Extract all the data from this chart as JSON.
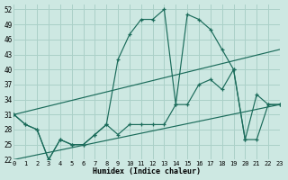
{
  "xlabel": "Humidex (Indice chaleur)",
  "background_color": "#cde8e2",
  "grid_color": "#aad0c8",
  "line_color": "#1a6b5a",
  "xlim": [
    0,
    23
  ],
  "ylim": [
    22,
    53
  ],
  "yticks": [
    22,
    25,
    28,
    31,
    34,
    37,
    40,
    43,
    46,
    49,
    52
  ],
  "xticks": [
    0,
    1,
    2,
    3,
    4,
    5,
    6,
    7,
    8,
    9,
    10,
    11,
    12,
    13,
    14,
    15,
    16,
    17,
    18,
    19,
    20,
    21,
    22,
    23
  ],
  "line_upper_x": [
    0,
    1,
    2,
    3,
    4,
    5,
    6,
    7,
    8,
    9,
    10,
    11,
    12,
    13,
    14,
    15,
    16,
    17,
    18,
    19,
    20,
    21,
    22,
    23
  ],
  "line_upper_y": [
    31,
    29,
    28,
    22,
    26,
    25,
    25,
    27,
    29,
    42,
    47,
    50,
    50,
    52,
    33,
    51,
    50,
    48,
    44,
    40,
    26,
    35,
    33,
    33
  ],
  "line_lower_x": [
    0,
    1,
    2,
    3,
    4,
    5,
    6,
    7,
    8,
    9,
    10,
    11,
    12,
    13,
    14,
    15,
    16,
    17,
    18,
    19,
    20,
    21,
    22,
    23
  ],
  "line_lower_y": [
    31,
    29,
    28,
    22,
    26,
    25,
    25,
    27,
    29,
    27,
    29,
    29,
    29,
    29,
    33,
    33,
    37,
    38,
    36,
    40,
    26,
    26,
    33,
    33
  ],
  "trend1_x": [
    0,
    23
  ],
  "trend1_y": [
    31,
    44
  ],
  "trend2_x": [
    0,
    23
  ],
  "trend2_y": [
    22,
    33
  ]
}
